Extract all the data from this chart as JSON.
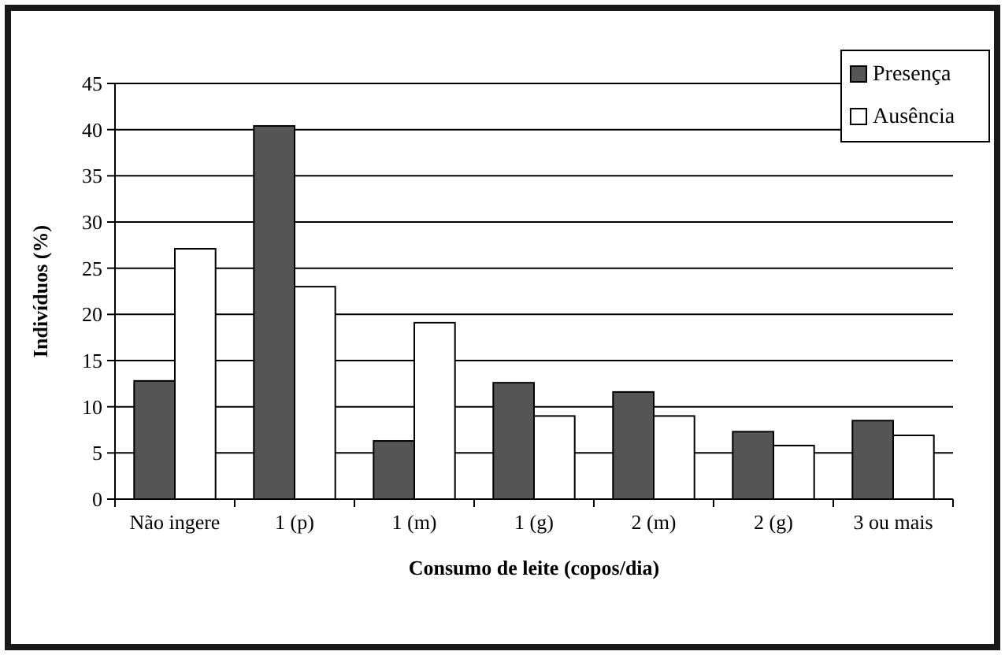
{
  "chart_data": {
    "type": "bar",
    "xlabel": "Consumo de leite (copos/dia)",
    "ylabel": "Indivíduos (%)",
    "categories": [
      "Não ingere",
      "1 (p)",
      "1 (m)",
      "1 (g)",
      "2 (m)",
      "2 (g)",
      "3 ou mais"
    ],
    "series": [
      {
        "name": "Presença",
        "color": "#555555",
        "values": [
          12.8,
          40.4,
          6.3,
          12.6,
          11.6,
          7.3,
          8.5
        ]
      },
      {
        "name": "Ausência",
        "color": "#ffffff",
        "values": [
          27.1,
          23,
          19.1,
          9,
          9,
          5.8,
          6.9
        ]
      }
    ],
    "ylim": [
      0,
      45
    ],
    "yticks": [
      0,
      5,
      10,
      15,
      20,
      25,
      30,
      35,
      40,
      45
    ],
    "grid": "y",
    "legend": "top right"
  }
}
